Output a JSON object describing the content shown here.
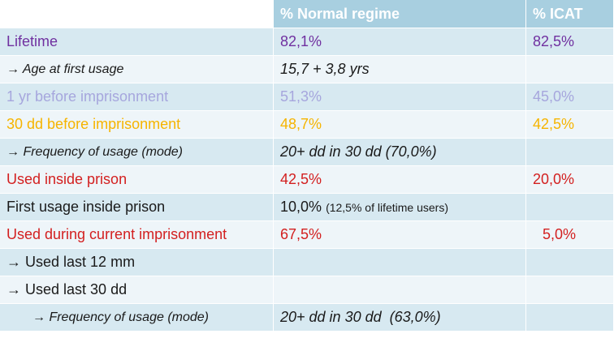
{
  "header": {
    "col1": "",
    "col2": "% Normal regime",
    "col3": "% ICAT"
  },
  "rows": [
    {
      "label": "Lifetime",
      "normal": "82,1%",
      "normal_note": "",
      "icat": "82,5%"
    },
    {
      "label": "Age at first usage",
      "normal": "15,7 + 3,8 yrs",
      "normal_note": "",
      "icat": ""
    },
    {
      "label": "1 yr before imprisonment",
      "normal": "51,3%",
      "normal_note": "",
      "icat": "45,0%"
    },
    {
      "label": "30 dd before imprisonment",
      "normal": "48,7%",
      "normal_note": "",
      "icat": "42,5%"
    },
    {
      "label": "Frequency of usage (mode)",
      "normal": "20+ dd in 30 dd (70,0%)",
      "normal_note": "",
      "icat": ""
    },
    {
      "label": "Used inside prison",
      "normal": "42,5%",
      "normal_note": "",
      "icat": "20,0%"
    },
    {
      "label": "First usage inside prison",
      "normal": "10,0%",
      "normal_note": "(12,5% of lifetime users)",
      "icat": ""
    },
    {
      "label": "Used during current imprisonment",
      "normal": "67,5%",
      "normal_note": "",
      "icat": "5,0%"
    },
    {
      "label": "Used last 12 mm",
      "normal": "",
      "normal_note": "",
      "icat": ""
    },
    {
      "label": "Used last 30 dd",
      "normal": "",
      "normal_note": "",
      "icat": ""
    },
    {
      "label": "Frequency of usage (mode)",
      "normal": "20+ dd in 30 dd  (63,0%)",
      "normal_note": "",
      "icat": ""
    }
  ],
  "arrow_glyph": "→",
  "colors": {
    "header_bg": "#a8cfe0",
    "row_dark": "#d7e9f1",
    "row_light": "#eef5f9",
    "purple": "#7030a0",
    "lavender": "#a6a6dd",
    "orange": "#f6b400",
    "red": "#d32020"
  }
}
